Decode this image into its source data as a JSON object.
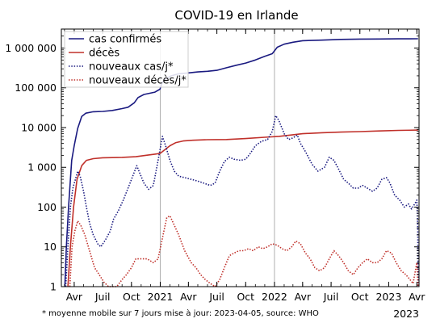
{
  "chart_data": {
    "type": "line",
    "title": "COVID-19 en Irlande",
    "y_scale": "log",
    "ylim": [
      1,
      3000000
    ],
    "xlim": [
      "2020-02-20",
      "2023-04-08"
    ],
    "y_ticks": [
      {
        "value": 1,
        "label": "1"
      },
      {
        "value": 10,
        "label": "10"
      },
      {
        "value": 100,
        "label": "100"
      },
      {
        "value": 1000,
        "label": "1 000"
      },
      {
        "value": 10000,
        "label": "10 000"
      },
      {
        "value": 100000,
        "label": "100 000"
      },
      {
        "value": 1000000,
        "label": "1 000 000"
      }
    ],
    "x_ticks": [
      {
        "date": "2020-04-01",
        "label": "Avr"
      },
      {
        "date": "2020-07-01",
        "label": "Juil"
      },
      {
        "date": "2020-10-01",
        "label": "Oct"
      },
      {
        "date": "2021-01-01",
        "label": "2021"
      },
      {
        "date": "2021-04-01",
        "label": "Avr"
      },
      {
        "date": "2021-07-01",
        "label": "Juil"
      },
      {
        "date": "2021-10-01",
        "label": "Oct"
      },
      {
        "date": "2022-01-01",
        "label": "2022"
      },
      {
        "date": "2022-04-01",
        "label": "Avr"
      },
      {
        "date": "2022-07-01",
        "label": "Juil"
      },
      {
        "date": "2022-10-01",
        "label": "Oct"
      },
      {
        "date": "2023-01-01",
        "label": "2023"
      },
      {
        "date": "2023-04-01",
        "label": "Avr"
      }
    ],
    "year_gridlines": [
      "2021-01-01",
      "2022-01-01"
    ],
    "x_axis_year_label": "2023",
    "legend_position": "top-left",
    "footnote": "* moyenne mobile sur 7 jours  mise à jour: 2023-04-05, source: WHO",
    "series": [
      {
        "name": "cas confirmés",
        "color": "#1a1a80",
        "style": "solid",
        "points": [
          [
            "2020-03-02",
            1
          ],
          [
            "2020-03-07",
            10
          ],
          [
            "2020-03-14",
            100
          ],
          [
            "2020-03-24",
            1500
          ],
          [
            "2020-04-01",
            3500
          ],
          [
            "2020-04-12",
            9500
          ],
          [
            "2020-04-25",
            19000
          ],
          [
            "2020-05-08",
            23000
          ],
          [
            "2020-06-01",
            25000
          ],
          [
            "2020-07-01",
            25500
          ],
          [
            "2020-08-01",
            27000
          ],
          [
            "2020-09-01",
            30000
          ],
          [
            "2020-09-20",
            32500
          ],
          [
            "2020-10-10",
            42000
          ],
          [
            "2020-10-22",
            57000
          ],
          [
            "2020-11-10",
            68000
          ],
          [
            "2020-12-15",
            78000
          ],
          [
            "2020-12-31",
            92000
          ],
          [
            "2021-01-08",
            140000
          ],
          [
            "2021-01-20",
            170000
          ],
          [
            "2021-02-05",
            200000
          ],
          [
            "2021-03-01",
            225000
          ],
          [
            "2021-04-01",
            237000
          ],
          [
            "2021-05-01",
            250000
          ],
          [
            "2021-06-01",
            260000
          ],
          [
            "2021-07-01",
            275000
          ],
          [
            "2021-08-01",
            320000
          ],
          [
            "2021-09-01",
            370000
          ],
          [
            "2021-10-01",
            420000
          ],
          [
            "2021-11-01",
            500000
          ],
          [
            "2021-12-01",
            620000
          ],
          [
            "2021-12-25",
            720000
          ],
          [
            "2022-01-10",
            1050000
          ],
          [
            "2022-02-01",
            1250000
          ],
          [
            "2022-03-01",
            1400000
          ],
          [
            "2022-04-01",
            1530000
          ],
          [
            "2022-06-01",
            1580000
          ],
          [
            "2022-08-01",
            1650000
          ],
          [
            "2022-10-01",
            1680000
          ],
          [
            "2022-12-01",
            1690000
          ],
          [
            "2023-02-01",
            1700000
          ],
          [
            "2023-04-05",
            1710000
          ]
        ]
      },
      {
        "name": "décès",
        "color": "#c0302a",
        "style": "solid",
        "points": [
          [
            "2020-03-12",
            1
          ],
          [
            "2020-03-20",
            10
          ],
          [
            "2020-03-30",
            100
          ],
          [
            "2020-04-10",
            500
          ],
          [
            "2020-04-25",
            1100
          ],
          [
            "2020-05-10",
            1500
          ],
          [
            "2020-06-01",
            1650
          ],
          [
            "2020-07-01",
            1740
          ],
          [
            "2020-09-01",
            1780
          ],
          [
            "2020-10-15",
            1850
          ],
          [
            "2020-11-15",
            2000
          ],
          [
            "2020-12-15",
            2150
          ],
          [
            "2021-01-01",
            2250
          ],
          [
            "2021-01-15",
            2750
          ],
          [
            "2021-02-01",
            3500
          ],
          [
            "2021-02-20",
            4200
          ],
          [
            "2021-03-15",
            4600
          ],
          [
            "2021-04-15",
            4800
          ],
          [
            "2021-06-01",
            4950
          ],
          [
            "2021-08-01",
            5000
          ],
          [
            "2021-10-01",
            5300
          ],
          [
            "2021-12-01",
            5700
          ],
          [
            "2022-01-15",
            6000
          ],
          [
            "2022-03-01",
            6600
          ],
          [
            "2022-04-01",
            7000
          ],
          [
            "2022-06-01",
            7400
          ],
          [
            "2022-08-01",
            7700
          ],
          [
            "2022-10-01",
            7900
          ],
          [
            "2022-12-01",
            8200
          ],
          [
            "2023-02-01",
            8500
          ],
          [
            "2023-04-05",
            8650
          ]
        ]
      },
      {
        "name": "nouveaux cas/j*",
        "color": "#1a1a80",
        "style": "dotted",
        "points": [
          [
            "2020-03-05",
            1
          ],
          [
            "2020-03-12",
            10
          ],
          [
            "2020-03-20",
            100
          ],
          [
            "2020-03-28",
            300
          ],
          [
            "2020-04-05",
            500
          ],
          [
            "2020-04-12",
            800
          ],
          [
            "2020-04-20",
            600
          ],
          [
            "2020-05-01",
            250
          ],
          [
            "2020-05-10",
            100
          ],
          [
            "2020-05-20",
            40
          ],
          [
            "2020-06-01",
            20
          ],
          [
            "2020-06-15",
            12
          ],
          [
            "2020-06-25",
            10
          ],
          [
            "2020-07-10",
            15
          ],
          [
            "2020-07-25",
            25
          ],
          [
            "2020-08-05",
            50
          ],
          [
            "2020-08-20",
            80
          ],
          [
            "2020-09-05",
            150
          ],
          [
            "2020-09-20",
            300
          ],
          [
            "2020-10-05",
            600
          ],
          [
            "2020-10-18",
            1100
          ],
          [
            "2020-10-28",
            700
          ],
          [
            "2020-11-10",
            400
          ],
          [
            "2020-11-25",
            280
          ],
          [
            "2020-12-10",
            350
          ],
          [
            "2020-12-25",
            1500
          ],
          [
            "2021-01-08",
            6000
          ],
          [
            "2021-01-18",
            3500
          ],
          [
            "2021-02-01",
            1500
          ],
          [
            "2021-02-15",
            800
          ],
          [
            "2021-03-01",
            600
          ],
          [
            "2021-03-20",
            550
          ],
          [
            "2021-04-10",
            500
          ],
          [
            "2021-05-01",
            450
          ],
          [
            "2021-05-20",
            400
          ],
          [
            "2021-06-10",
            350
          ],
          [
            "2021-06-25",
            400
          ],
          [
            "2021-07-10",
            800
          ],
          [
            "2021-07-25",
            1400
          ],
          [
            "2021-08-10",
            1800
          ],
          [
            "2021-08-25",
            1600
          ],
          [
            "2021-09-15",
            1500
          ],
          [
            "2021-10-01",
            1600
          ],
          [
            "2021-10-15",
            2200
          ],
          [
            "2021-11-01",
            3500
          ],
          [
            "2021-11-20",
            4500
          ],
          [
            "2021-12-10",
            5000
          ],
          [
            "2021-12-25",
            8000
          ],
          [
            "2022-01-05",
            20000
          ],
          [
            "2022-01-15",
            15000
          ],
          [
            "2022-02-01",
            7000
          ],
          [
            "2022-02-15",
            5000
          ],
          [
            "2022-03-01",
            5500
          ],
          [
            "2022-03-15",
            6500
          ],
          [
            "2022-03-25",
            4000
          ],
          [
            "2022-04-10",
            2500
          ],
          [
            "2022-05-01",
            1200
          ],
          [
            "2022-05-20",
            800
          ],
          [
            "2022-06-10",
            1000
          ],
          [
            "2022-06-25",
            1800
          ],
          [
            "2022-07-10",
            1500
          ],
          [
            "2022-07-25",
            900
          ],
          [
            "2022-08-10",
            500
          ],
          [
            "2022-08-25",
            400
          ],
          [
            "2022-09-10",
            300
          ],
          [
            "2022-09-25",
            300
          ],
          [
            "2022-10-10",
            350
          ],
          [
            "2022-10-25",
            300
          ],
          [
            "2022-11-10",
            250
          ],
          [
            "2022-11-25",
            300
          ],
          [
            "2022-12-10",
            500
          ],
          [
            "2022-12-25",
            550
          ],
          [
            "2023-01-05",
            400
          ],
          [
            "2023-01-20",
            200
          ],
          [
            "2023-02-05",
            150
          ],
          [
            "2023-02-20",
            100
          ],
          [
            "2023-03-05",
            120
          ],
          [
            "2023-03-15",
            90
          ],
          [
            "2023-03-25",
            120
          ],
          [
            "2023-04-01",
            150
          ],
          [
            "2023-04-04",
            30
          ],
          [
            "2023-04-05",
            1
          ]
        ]
      },
      {
        "name": "nouveaux décès/j*",
        "color": "#c0302a",
        "style": "dotted",
        "points": [
          [
            "2020-03-18",
            1
          ],
          [
            "2020-03-25",
            10
          ],
          [
            "2020-04-03",
            25
          ],
          [
            "2020-04-12",
            45
          ],
          [
            "2020-04-22",
            35
          ],
          [
            "2020-05-05",
            20
          ],
          [
            "2020-05-20",
            8
          ],
          [
            "2020-06-05",
            3
          ],
          [
            "2020-06-20",
            2
          ],
          [
            "2020-07-05",
            1.3
          ],
          [
            "2020-07-20",
            1
          ],
          [
            "2020-08-15",
            1
          ],
          [
            "2020-09-01",
            1.5
          ],
          [
            "2020-09-15",
            2
          ],
          [
            "2020-10-01",
            3
          ],
          [
            "2020-10-15",
            5
          ],
          [
            "2020-11-01",
            5
          ],
          [
            "2020-11-20",
            5
          ],
          [
            "2020-12-10",
            4
          ],
          [
            "2020-12-25",
            5
          ],
          [
            "2021-01-10",
            20
          ],
          [
            "2021-01-22",
            55
          ],
          [
            "2021-02-01",
            60
          ],
          [
            "2021-02-15",
            35
          ],
          [
            "2021-03-01",
            20
          ],
          [
            "2021-03-20",
            8
          ],
          [
            "2021-04-10",
            4
          ],
          [
            "2021-04-25",
            3
          ],
          [
            "2021-05-10",
            2
          ],
          [
            "2021-05-25",
            1.5
          ],
          [
            "2021-06-10",
            1.2
          ],
          [
            "2021-06-25",
            1
          ],
          [
            "2021-07-10",
            1.5
          ],
          [
            "2021-07-25",
            3
          ],
          [
            "2021-08-10",
            6
          ],
          [
            "2021-08-25",
            7
          ],
          [
            "2021-09-10",
            8
          ],
          [
            "2021-09-25",
            8
          ],
          [
            "2021-10-10",
            9
          ],
          [
            "2021-10-25",
            8
          ],
          [
            "2021-11-10",
            10
          ],
          [
            "2021-11-25",
            9
          ],
          [
            "2021-12-10",
            10
          ],
          [
            "2021-12-25",
            12
          ],
          [
            "2022-01-10",
            11
          ],
          [
            "2022-01-25",
            9
          ],
          [
            "2022-02-10",
            8
          ],
          [
            "2022-02-25",
            10
          ],
          [
            "2022-03-10",
            14
          ],
          [
            "2022-03-25",
            12
          ],
          [
            "2022-04-10",
            7
          ],
          [
            "2022-04-25",
            5
          ],
          [
            "2022-05-10",
            3
          ],
          [
            "2022-05-25",
            2.5
          ],
          [
            "2022-06-10",
            3
          ],
          [
            "2022-06-25",
            5
          ],
          [
            "2022-07-10",
            8
          ],
          [
            "2022-07-25",
            6
          ],
          [
            "2022-08-10",
            4
          ],
          [
            "2022-08-25",
            2.5
          ],
          [
            "2022-09-10",
            2
          ],
          [
            "2022-09-25",
            3
          ],
          [
            "2022-10-10",
            4
          ],
          [
            "2022-10-25",
            5
          ],
          [
            "2022-11-10",
            4
          ],
          [
            "2022-11-25",
            4
          ],
          [
            "2022-12-10",
            5
          ],
          [
            "2022-12-25",
            8
          ],
          [
            "2023-01-10",
            7
          ],
          [
            "2023-01-25",
            4
          ],
          [
            "2023-02-10",
            2.5
          ],
          [
            "2023-02-25",
            2
          ],
          [
            "2023-03-10",
            1.5
          ],
          [
            "2023-03-20",
            1.2
          ],
          [
            "2023-04-01",
            4
          ],
          [
            "2023-04-05",
            1
          ]
        ]
      }
    ]
  }
}
